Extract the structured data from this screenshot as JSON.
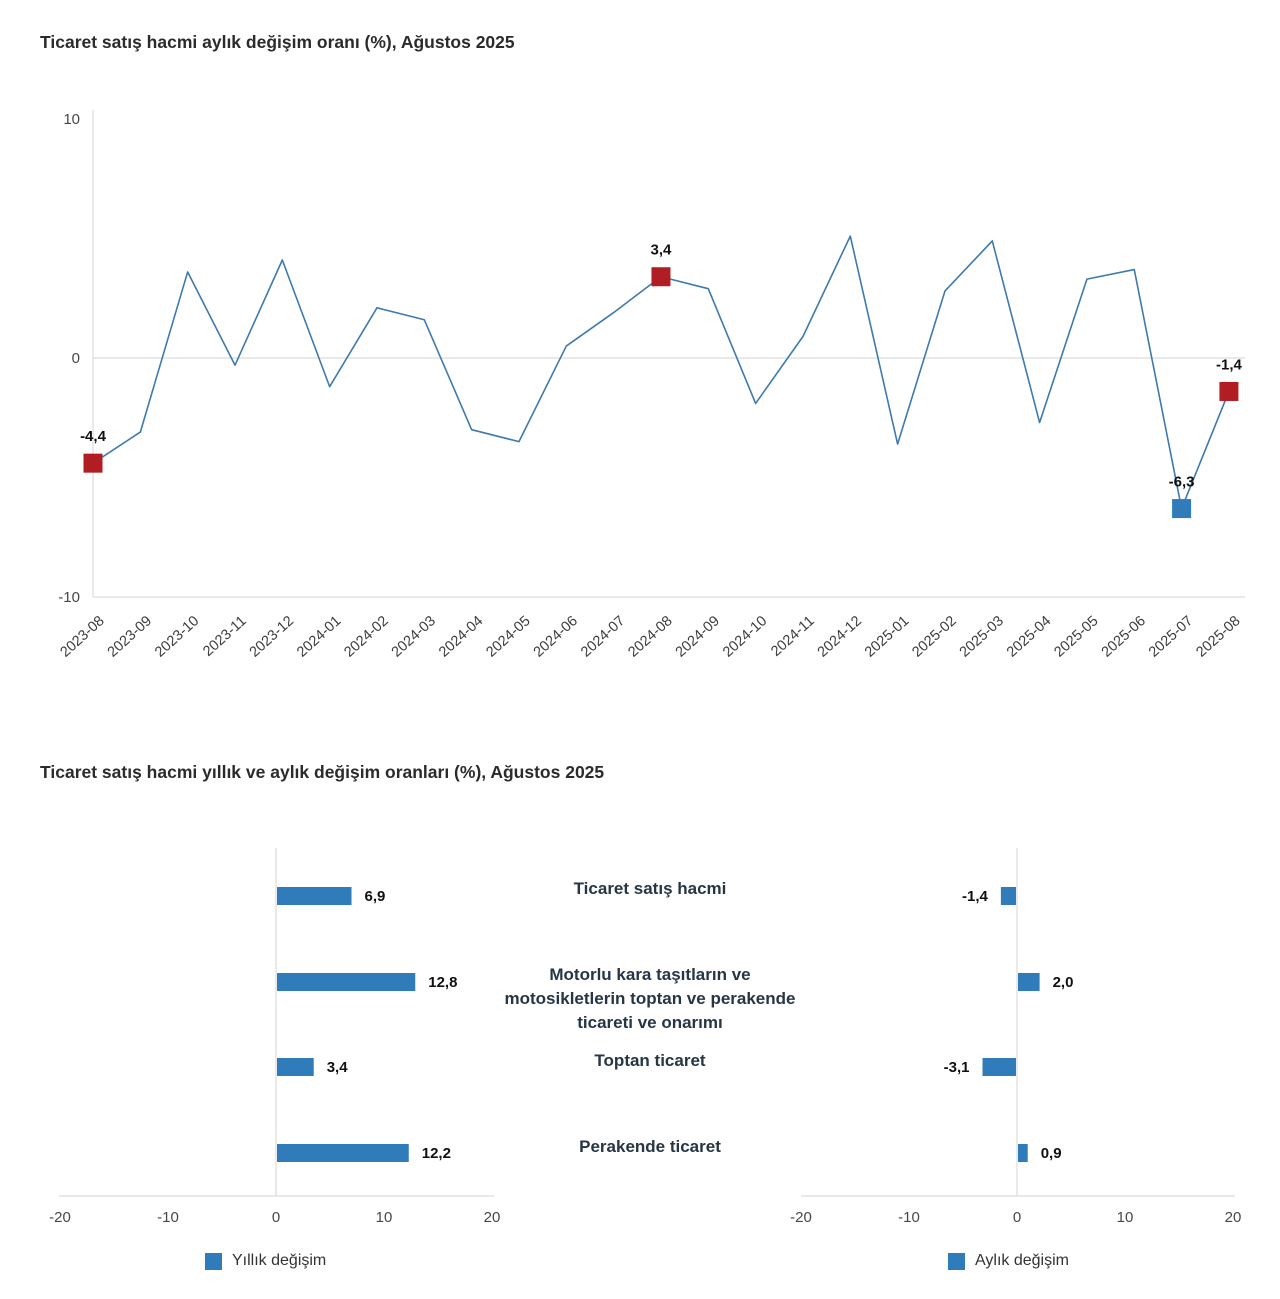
{
  "colors": {
    "grid": "#dcdcdc",
    "axis_text": "#474747",
    "title_text": "#2b2b2b",
    "category_text": "#263645",
    "blue": "#307cba",
    "red": "#b01e23"
  },
  "chart_data": [
    {
      "type": "line",
      "title": "Ticaret satış hacmi aylık değişim oranı (%), Ağustos 2025",
      "line_color": "#3e7aad",
      "ylim": [
        -10,
        10
      ],
      "yticks": [
        10,
        0,
        -10
      ],
      "grid": "zero-line-only",
      "x": [
        "2023-08",
        "2023-09",
        "2023-10",
        "2023-11",
        "2023-12",
        "2024-01",
        "2024-02",
        "2024-03",
        "2024-04",
        "2024-05",
        "2024-06",
        "2024-07",
        "2024-08",
        "2024-09",
        "2024-10",
        "2024-11",
        "2024-12",
        "2025-01",
        "2025-02",
        "2025-03",
        "2025-04",
        "2025-05",
        "2025-06",
        "2025-07",
        "2025-08"
      ],
      "values": [
        -4.4,
        -3.1,
        3.6,
        -0.3,
        4.1,
        -1.2,
        2.1,
        1.6,
        -3.0,
        -3.5,
        0.5,
        1.9,
        3.4,
        2.9,
        -1.9,
        0.9,
        5.1,
        -3.6,
        2.8,
        4.9,
        -2.7,
        3.3,
        3.7,
        -6.3,
        -1.4
      ],
      "annotations": [
        {
          "x": "2023-08",
          "label": "-4,4",
          "marker": "square",
          "color": "#b01e23"
        },
        {
          "x": "2024-08",
          "label": "3,4",
          "marker": "square",
          "color": "#b01e23"
        },
        {
          "x": "2025-07",
          "label": "-6,3",
          "marker": "square",
          "color": "#307cba"
        },
        {
          "x": "2025-08",
          "label": "-1,4",
          "marker": "square",
          "color": "#b01e23"
        }
      ]
    },
    {
      "type": "bar",
      "orientation": "horizontal",
      "section_title": "Ticaret satış hacmi yıllık ve aylık değişim oranları (%), Ağustos 2025",
      "legend": "Yıllık değişim",
      "legend_position": "bottom",
      "bar_color": "#307cba",
      "categories": [
        "Ticaret satış hacmi",
        "Motorlu kara taşıtların ve motosikletlerin toptan ve perakende ticareti ve onarımı",
        "Toptan ticaret",
        "Perakende ticaret"
      ],
      "values": [
        6.9,
        12.8,
        3.4,
        12.2
      ],
      "value_labels": [
        "6,9",
        "12,8",
        "3,4",
        "12,2"
      ],
      "xlim": [
        -20,
        20
      ],
      "xticks": [
        -20,
        -10,
        0,
        10,
        20
      ]
    },
    {
      "type": "bar",
      "orientation": "horizontal",
      "legend": "Aylık değişim",
      "legend_position": "bottom",
      "bar_color": "#307cba",
      "categories": [
        "Ticaret satış hacmi",
        "Motorlu kara taşıtların ve motosikletlerin toptan ve perakende ticareti ve onarımı",
        "Toptan ticaret",
        "Perakende ticaret"
      ],
      "values": [
        -1.4,
        2.0,
        -3.1,
        0.9
      ],
      "value_labels": [
        "-1,4",
        "2,0",
        "-3,1",
        "0,9"
      ],
      "xlim": [
        -20,
        20
      ],
      "xticks": [
        -20,
        -10,
        0,
        10,
        20
      ]
    }
  ]
}
